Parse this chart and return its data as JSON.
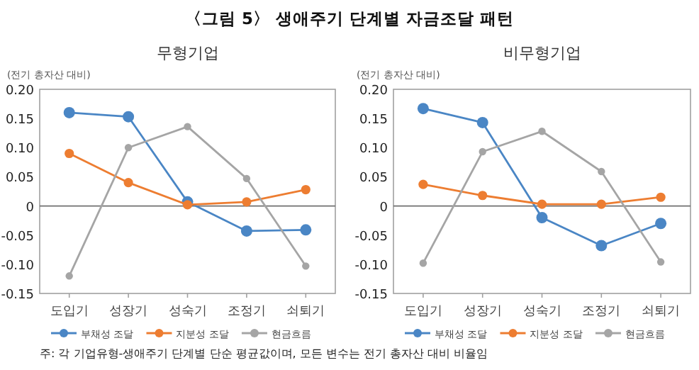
{
  "chart_data": [
    {
      "type": "line",
      "title": "무형기업",
      "ylabel": "(전기 총자산 대비)",
      "categories": [
        "도입기",
        "성장기",
        "성숙기",
        "조정기",
        "쇠퇴기"
      ],
      "series": [
        {
          "name": "부채성 조달",
          "color": "#4a86c5",
          "values": [
            0.16,
            0.153,
            0.007,
            -0.043,
            -0.041
          ]
        },
        {
          "name": "지분성 조달",
          "color": "#ed7d31",
          "values": [
            0.09,
            0.04,
            0.002,
            0.007,
            0.028
          ]
        },
        {
          "name": "현금흐름",
          "color": "#a5a5a5",
          "values": [
            -0.12,
            0.1,
            0.136,
            0.047,
            -0.103
          ]
        }
      ],
      "ylim": [
        -0.15,
        0.2
      ],
      "yticks": [
        {
          "value": -0.15,
          "label": "-0.15"
        },
        {
          "value": -0.1,
          "label": "-0.10"
        },
        {
          "value": -0.05,
          "label": "-0.05"
        },
        0,
        {
          "value": 0.05,
          "label": "0.05"
        },
        {
          "value": 0.1,
          "label": "0.10"
        },
        {
          "value": 0.15,
          "label": "0.15"
        },
        {
          "value": 0.2,
          "label": "0.20"
        }
      ],
      "legend": "bottom",
      "marker": "circle",
      "annotations": [
        "〈그림 5〉 생애주기 단계별 자금조달 패턴",
        "주: 각 기업유형-생애주기 단계별 단순 평균값이며, 모든 변수는 전기 총자산 대비 비율임"
      ]
    },
    {
      "type": "line",
      "title": "비무형기업",
      "ylabel": "(전기 총자산 대비)",
      "categories": [
        "도입기",
        "성장기",
        "성숙기",
        "조정기",
        "쇠퇴기"
      ],
      "series": [
        {
          "name": "부채성 조달",
          "color": "#4a86c5",
          "values": [
            0.167,
            0.143,
            -0.02,
            -0.068,
            -0.03
          ]
        },
        {
          "name": "지분성 조달",
          "color": "#ed7d31",
          "values": [
            0.037,
            0.018,
            0.003,
            0.003,
            0.015
          ]
        },
        {
          "name": "현금흐름",
          "color": "#a5a5a5",
          "values": [
            -0.098,
            0.093,
            0.128,
            0.059,
            -0.096
          ]
        }
      ],
      "ylim": [
        -0.15,
        0.2
      ],
      "yticks": [
        {
          "value": -0.15,
          "label": "-0.15"
        },
        {
          "value": -0.1,
          "label": "-0.10"
        },
        {
          "value": -0.05,
          "label": "-0.05"
        },
        0,
        {
          "value": 0.05,
          "label": "0.05"
        },
        {
          "value": 0.1,
          "label": "0.10"
        },
        {
          "value": 0.15,
          "label": "0.15"
        },
        {
          "value": 0.2,
          "label": "0.20"
        }
      ],
      "legend": "bottom",
      "marker": "circle"
    }
  ]
}
